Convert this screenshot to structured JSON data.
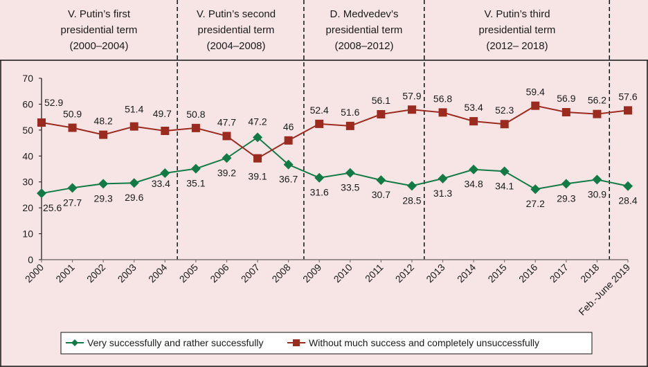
{
  "chart_data": {
    "type": "line",
    "title": "",
    "xlabel": "",
    "ylabel": "",
    "ylim": [
      0,
      70
    ],
    "yticks": [
      0,
      10,
      20,
      30,
      40,
      50,
      60,
      70
    ],
    "grid": false,
    "legend_position": "bottom",
    "categories": [
      "2000",
      "2001",
      "2002",
      "2003",
      "2004",
      "2005",
      "2006",
      "2007",
      "2008",
      "2009",
      "2010",
      "2011",
      "2012",
      "2013",
      "2014",
      "2015",
      "2016",
      "2017",
      "2018",
      "Feb.-June 2019"
    ],
    "series": [
      {
        "name": "Very successfully and rather successfully",
        "color": "#127a45",
        "marker": "diamond",
        "values": [
          25.6,
          27.7,
          29.3,
          29.6,
          33.4,
          35.1,
          39.2,
          47.2,
          36.7,
          31.6,
          33.5,
          30.7,
          28.5,
          31.3,
          34.8,
          34.1,
          27.2,
          29.3,
          30.9,
          28.4
        ],
        "labels": [
          "25.6",
          "27.7",
          "29.3",
          "29.6",
          "33.4",
          "35.1",
          "39.2",
          "47.2",
          "36.7",
          "31.6",
          "33.5",
          "30.7",
          "28.5",
          "31.3",
          "34.8",
          "34.1",
          "27.2",
          "29.3",
          "30.9",
          "28.4"
        ]
      },
      {
        "name": "Without much success and completely unsuccessfully",
        "color": "#9b2a1f",
        "marker": "square",
        "values": [
          52.9,
          50.9,
          48.2,
          51.4,
          49.7,
          50.8,
          47.7,
          39.1,
          46,
          52.4,
          51.6,
          56.1,
          57.9,
          56.8,
          53.4,
          52.3,
          59.4,
          56.9,
          56.2,
          57.6
        ],
        "labels": [
          "52.9",
          "50.9",
          "48.2",
          "51.4",
          "49.7",
          "50.8",
          "47.7",
          "39.1",
          "46",
          "52.4",
          "51.6",
          "56.1",
          "57.9",
          "56.8",
          "53.4",
          "52.3",
          "59.4",
          "56.9",
          "56.2",
          "57.6"
        ]
      }
    ],
    "annotations": {
      "term_boundaries_after_index": [
        4.4,
        8.5,
        12.4,
        18.4
      ],
      "terms": [
        {
          "lines": [
            "V. Putin’s first",
            "presidential term",
            "(2000–2004)"
          ]
        },
        {
          "lines": [
            "V. Putin’s second",
            "presidential term",
            "(2004–2008)"
          ]
        },
        {
          "lines": [
            "D. Medvedev’s",
            "presidential term",
            "(2008–2012)"
          ]
        },
        {
          "lines": [
            "V. Putin’s third",
            "presidential term",
            "(2012– 2018)"
          ]
        }
      ]
    }
  },
  "colors": {
    "background": "#f7e5e5",
    "axis": "#7f7373",
    "frame": "#111111"
  }
}
